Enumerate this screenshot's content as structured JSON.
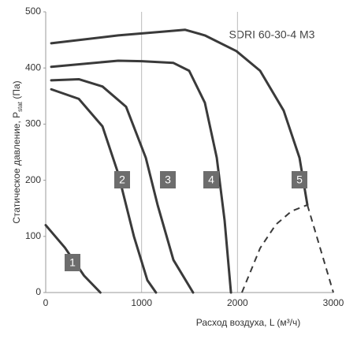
{
  "chart_data": {
    "type": "line",
    "title": "SDRI 60-30-4 M3",
    "x_label": "Расход воздуха, L (м³/ч)",
    "y_label": [
      "Статическое давление, P",
      "stat",
      " (Па)"
    ],
    "xlim": [
      0,
      3000
    ],
    "xticks": [
      0,
      1000,
      2000,
      3000
    ],
    "ylim": [
      0,
      500
    ],
    "yticks": [
      0,
      100,
      200,
      300,
      400,
      500
    ],
    "grid": "x",
    "color": "#3a3a3a",
    "series": [
      {
        "name": "1",
        "x": [
          0,
          200,
          400,
          570
        ],
        "values": [
          120,
          80,
          30,
          0
        ]
      },
      {
        "name": "2",
        "x": [
          58,
          345,
          592,
          756,
          920,
          1060,
          1150
        ],
        "values": [
          362,
          345,
          296,
          212,
          100,
          22,
          0
        ]
      },
      {
        "name": "3",
        "x": [
          58,
          345,
          592,
          838,
          1044,
          1167,
          1332,
          1537
        ],
        "values": [
          378,
          380,
          367,
          331,
          240,
          156,
          58,
          0
        ]
      },
      {
        "name": "4",
        "x": [
          58,
          756,
          1003,
          1332,
          1496,
          1660,
          1784,
          1866,
          1932
        ],
        "values": [
          402,
          413,
          412,
          409,
          395,
          338,
          240,
          128,
          0
        ]
      },
      {
        "name": "5",
        "x": [
          58,
          756,
          1249,
          1455,
          1660,
          1989,
          2236,
          2482,
          2647,
          2729
        ],
        "values": [
          444,
          458,
          465,
          468,
          458,
          430,
          395,
          324,
          240,
          156
        ]
      },
      {
        "dashed": true,
        "x": [
          2729,
          3000
        ],
        "values": [
          156,
          0
        ]
      },
      {
        "dashed": true,
        "x": [
          2046,
          2236,
          2400,
          2564,
          2729
        ],
        "values": [
          0,
          79,
          121,
          145,
          156
        ]
      }
    ]
  }
}
